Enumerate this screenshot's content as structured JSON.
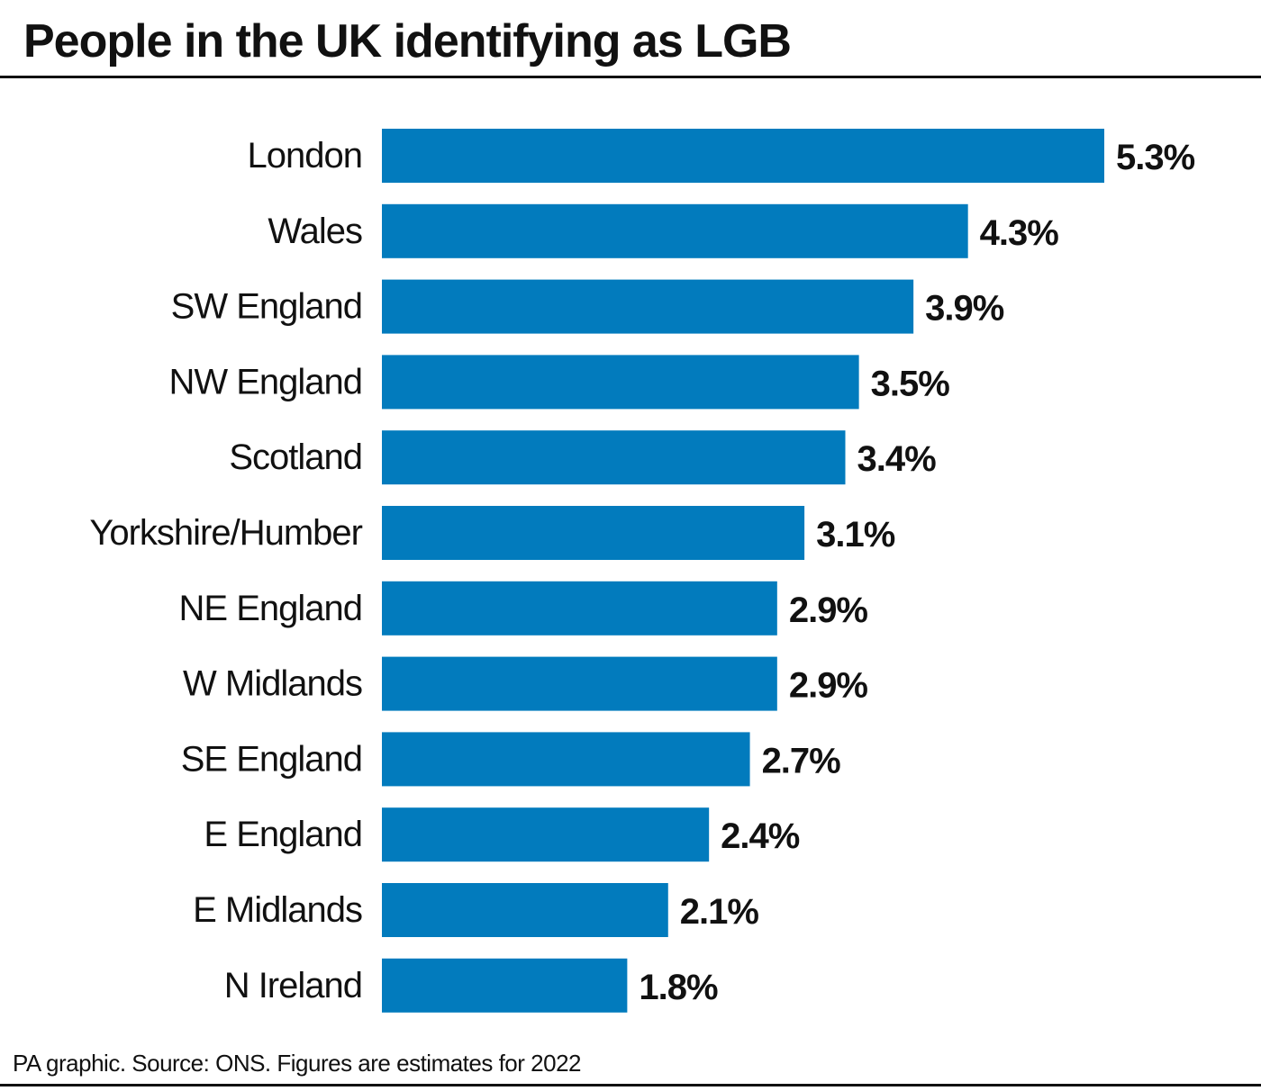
{
  "title": "People in the UK identifying as LGB",
  "footer": "PA graphic. Source: ONS. Figures are estimates for 2022",
  "colors": {
    "bar": "#027bbd",
    "text": "#111111"
  },
  "chart_data": {
    "type": "bar",
    "orientation": "horizontal",
    "title": "People in the UK identifying as LGB",
    "categories": [
      "London",
      "Wales",
      "SW England",
      "NW England",
      "Scotland",
      "Yorkshire/Humber",
      "NE England",
      "W Midlands",
      "SE England",
      "E England",
      "E Midlands",
      "N Ireland"
    ],
    "values": [
      5.3,
      4.3,
      3.9,
      3.5,
      3.4,
      3.1,
      2.9,
      2.9,
      2.7,
      2.4,
      2.1,
      1.8
    ],
    "value_labels": [
      "5.3%",
      "4.3%",
      "3.9%",
      "3.5%",
      "3.4%",
      "3.1%",
      "2.9%",
      "2.9%",
      "2.7%",
      "2.4%",
      "2.1%",
      "1.8%"
    ],
    "unit": "%",
    "xlim": [
      0,
      5.3
    ],
    "grid": false,
    "legend": "none"
  }
}
